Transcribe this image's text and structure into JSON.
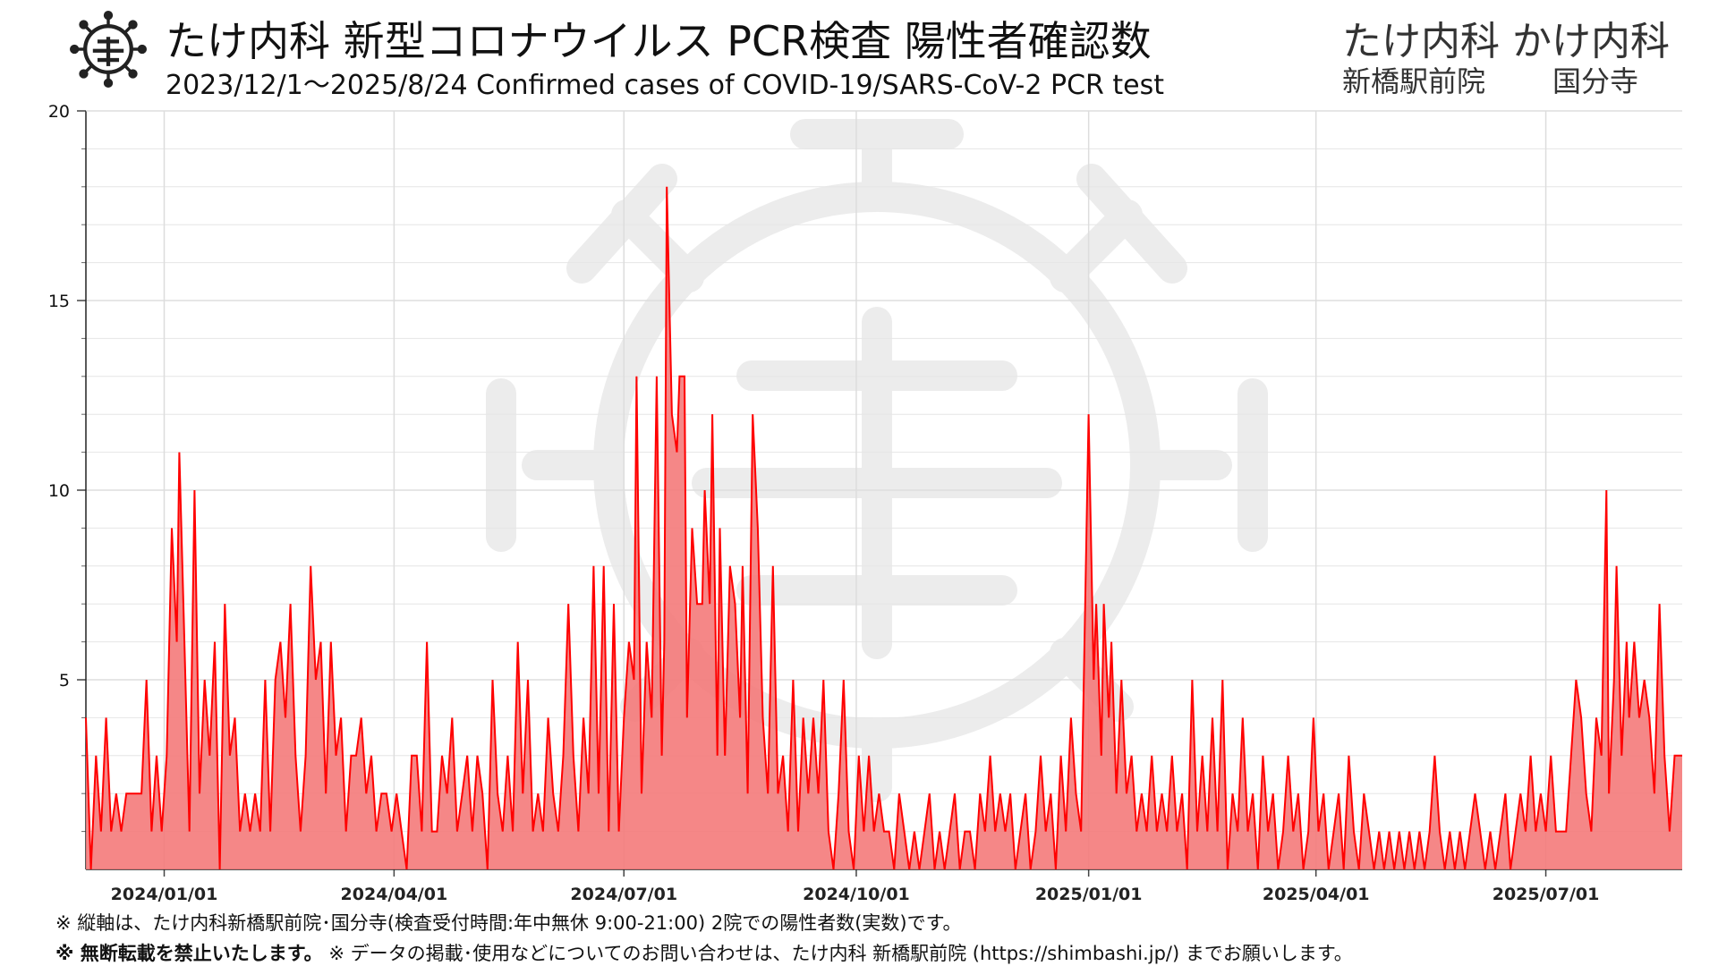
{
  "header": {
    "title": "たけ内科 新型コロナウイルス PCR検査 陽性者確認数",
    "subtitle": "2023/12/1～2025/8/24  Confirmed cases of COVID-19/SARS-CoV-2 PCR test",
    "clinic_names": "たけ内科 かけ内科",
    "branch_1": "新橋駅前院",
    "branch_2": "国分寺"
  },
  "footer": {
    "note_1": "※ 縦軸は、たけ内科新橋駅前院･国分寺(検査受付時間:年中無休 9:00-21:00) 2院での陽性者数(実数)です。",
    "note_2_bold": "※ 無断転載を禁止いたします。",
    "note_2_rest": " ※ データの掲載･使用などについてのお問い合わせは、たけ内科 新橋駅前院 (https://shimbashi.jp/) までお願いします。"
  },
  "colors": {
    "line": "#ff0000",
    "fill": "#f47a7a",
    "grid": "#dddddd",
    "watermark": "#ececec"
  },
  "icons": [
    "virus-logo-icon",
    "virus-watermark-icon"
  ],
  "chart_data": {
    "type": "area",
    "x_start": "2023-12-01",
    "x_end": "2025-08-24",
    "ylim": [
      0,
      20
    ],
    "yticks": [
      5,
      10,
      15,
      20
    ],
    "xticks": [
      {
        "date": "2024-01-01",
        "label": "2024/01/01"
      },
      {
        "date": "2024-04-01",
        "label": "2024/04/01"
      },
      {
        "date": "2024-07-01",
        "label": "2024/07/01"
      },
      {
        "date": "2024-10-01",
        "label": "2024/10/01"
      },
      {
        "date": "2025-01-01",
        "label": "2025/01/01"
      },
      {
        "date": "2025-04-01",
        "label": "2025/04/01"
      },
      {
        "date": "2025-07-01",
        "label": "2025/07/01"
      }
    ],
    "grid": true,
    "legend": "none",
    "points": [
      [
        "2023-12-01",
        4
      ],
      [
        "2023-12-03",
        0
      ],
      [
        "2023-12-05",
        3
      ],
      [
        "2023-12-07",
        1
      ],
      [
        "2023-12-09",
        4
      ],
      [
        "2023-12-11",
        1
      ],
      [
        "2023-12-13",
        2
      ],
      [
        "2023-12-15",
        1
      ],
      [
        "2023-12-17",
        2
      ],
      [
        "2023-12-19",
        2
      ],
      [
        "2023-12-21",
        2
      ],
      [
        "2023-12-23",
        2
      ],
      [
        "2023-12-25",
        5
      ],
      [
        "2023-12-27",
        1
      ],
      [
        "2023-12-29",
        3
      ],
      [
        "2023-12-31",
        1
      ],
      [
        "2024-01-02",
        3
      ],
      [
        "2024-01-04",
        9
      ],
      [
        "2024-01-06",
        6
      ],
      [
        "2024-01-07",
        11
      ],
      [
        "2024-01-09",
        6
      ],
      [
        "2024-01-11",
        1
      ],
      [
        "2024-01-13",
        10
      ],
      [
        "2024-01-15",
        2
      ],
      [
        "2024-01-17",
        5
      ],
      [
        "2024-01-19",
        3
      ],
      [
        "2024-01-21",
        6
      ],
      [
        "2024-01-23",
        0
      ],
      [
        "2024-01-25",
        7
      ],
      [
        "2024-01-27",
        3
      ],
      [
        "2024-01-29",
        4
      ],
      [
        "2024-01-31",
        1
      ],
      [
        "2024-02-02",
        2
      ],
      [
        "2024-02-04",
        1
      ],
      [
        "2024-02-06",
        2
      ],
      [
        "2024-02-08",
        1
      ],
      [
        "2024-02-10",
        5
      ],
      [
        "2024-02-12",
        1
      ],
      [
        "2024-02-14",
        5
      ],
      [
        "2024-02-16",
        6
      ],
      [
        "2024-02-18",
        4
      ],
      [
        "2024-02-20",
        7
      ],
      [
        "2024-02-22",
        3
      ],
      [
        "2024-02-24",
        1
      ],
      [
        "2024-02-26",
        3
      ],
      [
        "2024-02-28",
        8
      ],
      [
        "2024-03-01",
        5
      ],
      [
        "2024-03-03",
        6
      ],
      [
        "2024-03-05",
        2
      ],
      [
        "2024-03-07",
        6
      ],
      [
        "2024-03-09",
        3
      ],
      [
        "2024-03-11",
        4
      ],
      [
        "2024-03-13",
        1
      ],
      [
        "2024-03-15",
        3
      ],
      [
        "2024-03-17",
        3
      ],
      [
        "2024-03-19",
        4
      ],
      [
        "2024-03-21",
        2
      ],
      [
        "2024-03-23",
        3
      ],
      [
        "2024-03-25",
        1
      ],
      [
        "2024-03-27",
        2
      ],
      [
        "2024-03-29",
        2
      ],
      [
        "2024-03-31",
        1
      ],
      [
        "2024-04-02",
        2
      ],
      [
        "2024-04-04",
        1
      ],
      [
        "2024-04-06",
        0
      ],
      [
        "2024-04-08",
        3
      ],
      [
        "2024-04-10",
        3
      ],
      [
        "2024-04-12",
        1
      ],
      [
        "2024-04-14",
        6
      ],
      [
        "2024-04-16",
        1
      ],
      [
        "2024-04-18",
        1
      ],
      [
        "2024-04-20",
        3
      ],
      [
        "2024-04-22",
        2
      ],
      [
        "2024-04-24",
        4
      ],
      [
        "2024-04-26",
        1
      ],
      [
        "2024-04-28",
        2
      ],
      [
        "2024-04-30",
        3
      ],
      [
        "2024-05-02",
        1
      ],
      [
        "2024-05-04",
        3
      ],
      [
        "2024-05-06",
        2
      ],
      [
        "2024-05-08",
        0
      ],
      [
        "2024-05-10",
        5
      ],
      [
        "2024-05-12",
        2
      ],
      [
        "2024-05-14",
        1
      ],
      [
        "2024-05-16",
        3
      ],
      [
        "2024-05-18",
        1
      ],
      [
        "2024-05-20",
        6
      ],
      [
        "2024-05-22",
        2
      ],
      [
        "2024-05-24",
        5
      ],
      [
        "2024-05-26",
        1
      ],
      [
        "2024-05-28",
        2
      ],
      [
        "2024-05-30",
        1
      ],
      [
        "2024-06-01",
        4
      ],
      [
        "2024-06-03",
        2
      ],
      [
        "2024-06-05",
        1
      ],
      [
        "2024-06-07",
        3
      ],
      [
        "2024-06-09",
        7
      ],
      [
        "2024-06-11",
        3
      ],
      [
        "2024-06-13",
        1
      ],
      [
        "2024-06-15",
        4
      ],
      [
        "2024-06-17",
        2
      ],
      [
        "2024-06-19",
        8
      ],
      [
        "2024-06-21",
        2
      ],
      [
        "2024-06-23",
        8
      ],
      [
        "2024-06-25",
        1
      ],
      [
        "2024-06-27",
        7
      ],
      [
        "2024-06-29",
        1
      ],
      [
        "2024-07-01",
        4
      ],
      [
        "2024-07-03",
        6
      ],
      [
        "2024-07-05",
        5
      ],
      [
        "2024-07-06",
        13
      ],
      [
        "2024-07-08",
        2
      ],
      [
        "2024-07-10",
        6
      ],
      [
        "2024-07-12",
        4
      ],
      [
        "2024-07-14",
        13
      ],
      [
        "2024-07-16",
        3
      ],
      [
        "2024-07-17",
        6
      ],
      [
        "2024-07-18",
        18
      ],
      [
        "2024-07-20",
        12
      ],
      [
        "2024-07-22",
        11
      ],
      [
        "2024-07-23",
        13
      ],
      [
        "2024-07-25",
        13
      ],
      [
        "2024-07-26",
        4
      ],
      [
        "2024-07-28",
        9
      ],
      [
        "2024-07-30",
        7
      ],
      [
        "2024-08-01",
        7
      ],
      [
        "2024-08-02",
        10
      ],
      [
        "2024-08-04",
        7
      ],
      [
        "2024-08-05",
        12
      ],
      [
        "2024-08-07",
        3
      ],
      [
        "2024-08-08",
        9
      ],
      [
        "2024-08-10",
        3
      ],
      [
        "2024-08-12",
        8
      ],
      [
        "2024-08-14",
        7
      ],
      [
        "2024-08-16",
        4
      ],
      [
        "2024-08-17",
        8
      ],
      [
        "2024-08-19",
        2
      ],
      [
        "2024-08-21",
        12
      ],
      [
        "2024-08-23",
        9
      ],
      [
        "2024-08-25",
        4
      ],
      [
        "2024-08-27",
        2
      ],
      [
        "2024-08-29",
        8
      ],
      [
        "2024-08-31",
        2
      ],
      [
        "2024-09-02",
        3
      ],
      [
        "2024-09-04",
        1
      ],
      [
        "2024-09-06",
        5
      ],
      [
        "2024-09-08",
        1
      ],
      [
        "2024-09-10",
        4
      ],
      [
        "2024-09-12",
        2
      ],
      [
        "2024-09-14",
        4
      ],
      [
        "2024-09-16",
        2
      ],
      [
        "2024-09-18",
        5
      ],
      [
        "2024-09-20",
        1
      ],
      [
        "2024-09-22",
        0
      ],
      [
        "2024-09-24",
        2
      ],
      [
        "2024-09-26",
        5
      ],
      [
        "2024-09-28",
        1
      ],
      [
        "2024-09-30",
        0
      ],
      [
        "2024-10-02",
        3
      ],
      [
        "2024-10-04",
        1
      ],
      [
        "2024-10-06",
        3
      ],
      [
        "2024-10-08",
        1
      ],
      [
        "2024-10-10",
        2
      ],
      [
        "2024-10-12",
        1
      ],
      [
        "2024-10-14",
        1
      ],
      [
        "2024-10-16",
        0
      ],
      [
        "2024-10-18",
        2
      ],
      [
        "2024-10-20",
        1
      ],
      [
        "2024-10-22",
        0
      ],
      [
        "2024-10-24",
        1
      ],
      [
        "2024-10-26",
        0
      ],
      [
        "2024-10-28",
        1
      ],
      [
        "2024-10-30",
        2
      ],
      [
        "2024-11-01",
        0
      ],
      [
        "2024-11-03",
        1
      ],
      [
        "2024-11-05",
        0
      ],
      [
        "2024-11-07",
        1
      ],
      [
        "2024-11-09",
        2
      ],
      [
        "2024-11-11",
        0
      ],
      [
        "2024-11-13",
        1
      ],
      [
        "2024-11-15",
        1
      ],
      [
        "2024-11-17",
        0
      ],
      [
        "2024-11-19",
        2
      ],
      [
        "2024-11-21",
        1
      ],
      [
        "2024-11-23",
        3
      ],
      [
        "2024-11-25",
        1
      ],
      [
        "2024-11-27",
        2
      ],
      [
        "2024-11-29",
        1
      ],
      [
        "2024-12-01",
        2
      ],
      [
        "2024-12-03",
        0
      ],
      [
        "2024-12-05",
        1
      ],
      [
        "2024-12-07",
        2
      ],
      [
        "2024-12-09",
        0
      ],
      [
        "2024-12-11",
        1
      ],
      [
        "2024-12-13",
        3
      ],
      [
        "2024-12-15",
        1
      ],
      [
        "2024-12-17",
        2
      ],
      [
        "2024-12-19",
        0
      ],
      [
        "2024-12-21",
        3
      ],
      [
        "2024-12-23",
        1
      ],
      [
        "2024-12-25",
        4
      ],
      [
        "2024-12-27",
        2
      ],
      [
        "2024-12-29",
        1
      ],
      [
        "2025-01-01",
        12
      ],
      [
        "2025-01-03",
        5
      ],
      [
        "2025-01-04",
        7
      ],
      [
        "2025-01-06",
        3
      ],
      [
        "2025-01-07",
        7
      ],
      [
        "2025-01-09",
        4
      ],
      [
        "2025-01-10",
        6
      ],
      [
        "2025-01-12",
        2
      ],
      [
        "2025-01-14",
        5
      ],
      [
        "2025-01-16",
        2
      ],
      [
        "2025-01-18",
        3
      ],
      [
        "2025-01-20",
        1
      ],
      [
        "2025-01-22",
        2
      ],
      [
        "2025-01-24",
        1
      ],
      [
        "2025-01-26",
        3
      ],
      [
        "2025-01-28",
        1
      ],
      [
        "2025-01-30",
        2
      ],
      [
        "2025-02-01",
        1
      ],
      [
        "2025-02-03",
        3
      ],
      [
        "2025-02-05",
        1
      ],
      [
        "2025-02-07",
        2
      ],
      [
        "2025-02-09",
        0
      ],
      [
        "2025-02-11",
        5
      ],
      [
        "2025-02-13",
        1
      ],
      [
        "2025-02-15",
        3
      ],
      [
        "2025-02-17",
        1
      ],
      [
        "2025-02-19",
        4
      ],
      [
        "2025-02-21",
        1
      ],
      [
        "2025-02-23",
        5
      ],
      [
        "2025-02-25",
        0
      ],
      [
        "2025-02-27",
        2
      ],
      [
        "2025-03-01",
        1
      ],
      [
        "2025-03-03",
        4
      ],
      [
        "2025-03-05",
        1
      ],
      [
        "2025-03-07",
        2
      ],
      [
        "2025-03-09",
        0
      ],
      [
        "2025-03-11",
        3
      ],
      [
        "2025-03-13",
        1
      ],
      [
        "2025-03-15",
        2
      ],
      [
        "2025-03-17",
        0
      ],
      [
        "2025-03-19",
        1
      ],
      [
        "2025-03-21",
        3
      ],
      [
        "2025-03-23",
        1
      ],
      [
        "2025-03-25",
        2
      ],
      [
        "2025-03-27",
        0
      ],
      [
        "2025-03-29",
        1
      ],
      [
        "2025-03-31",
        4
      ],
      [
        "2025-04-02",
        1
      ],
      [
        "2025-04-04",
        2
      ],
      [
        "2025-04-06",
        0
      ],
      [
        "2025-04-08",
        1
      ],
      [
        "2025-04-10",
        2
      ],
      [
        "2025-04-12",
        0
      ],
      [
        "2025-04-14",
        3
      ],
      [
        "2025-04-16",
        1
      ],
      [
        "2025-04-18",
        0
      ],
      [
        "2025-04-20",
        2
      ],
      [
        "2025-04-22",
        1
      ],
      [
        "2025-04-24",
        0
      ],
      [
        "2025-04-26",
        1
      ],
      [
        "2025-04-28",
        0
      ],
      [
        "2025-04-30",
        1
      ],
      [
        "2025-05-02",
        0
      ],
      [
        "2025-05-04",
        1
      ],
      [
        "2025-05-06",
        0
      ],
      [
        "2025-05-08",
        1
      ],
      [
        "2025-05-10",
        0
      ],
      [
        "2025-05-12",
        1
      ],
      [
        "2025-05-14",
        0
      ],
      [
        "2025-05-16",
        1
      ],
      [
        "2025-05-18",
        3
      ],
      [
        "2025-05-20",
        1
      ],
      [
        "2025-05-22",
        0
      ],
      [
        "2025-05-24",
        1
      ],
      [
        "2025-05-26",
        0
      ],
      [
        "2025-05-28",
        1
      ],
      [
        "2025-05-30",
        0
      ],
      [
        "2025-06-01",
        1
      ],
      [
        "2025-06-03",
        2
      ],
      [
        "2025-06-05",
        1
      ],
      [
        "2025-06-07",
        0
      ],
      [
        "2025-06-09",
        1
      ],
      [
        "2025-06-11",
        0
      ],
      [
        "2025-06-13",
        1
      ],
      [
        "2025-06-15",
        2
      ],
      [
        "2025-06-17",
        0
      ],
      [
        "2025-06-19",
        1
      ],
      [
        "2025-06-21",
        2
      ],
      [
        "2025-06-23",
        1
      ],
      [
        "2025-06-25",
        3
      ],
      [
        "2025-06-27",
        1
      ],
      [
        "2025-06-29",
        2
      ],
      [
        "2025-07-01",
        1
      ],
      [
        "2025-07-03",
        3
      ],
      [
        "2025-07-05",
        1
      ],
      [
        "2025-07-07",
        1
      ],
      [
        "2025-07-09",
        1
      ],
      [
        "2025-07-11",
        3
      ],
      [
        "2025-07-13",
        5
      ],
      [
        "2025-07-15",
        4
      ],
      [
        "2025-07-17",
        2
      ],
      [
        "2025-07-19",
        1
      ],
      [
        "2025-07-21",
        4
      ],
      [
        "2025-07-23",
        3
      ],
      [
        "2025-07-25",
        10
      ],
      [
        "2025-07-26",
        2
      ],
      [
        "2025-07-28",
        5
      ],
      [
        "2025-07-29",
        8
      ],
      [
        "2025-07-31",
        3
      ],
      [
        "2025-08-02",
        6
      ],
      [
        "2025-08-03",
        4
      ],
      [
        "2025-08-05",
        6
      ],
      [
        "2025-08-07",
        4
      ],
      [
        "2025-08-09",
        5
      ],
      [
        "2025-08-11",
        4
      ],
      [
        "2025-08-13",
        2
      ],
      [
        "2025-08-15",
        7
      ],
      [
        "2025-08-17",
        3
      ],
      [
        "2025-08-19",
        1
      ],
      [
        "2025-08-21",
        3
      ],
      [
        "2025-08-24",
        3
      ]
    ]
  }
}
